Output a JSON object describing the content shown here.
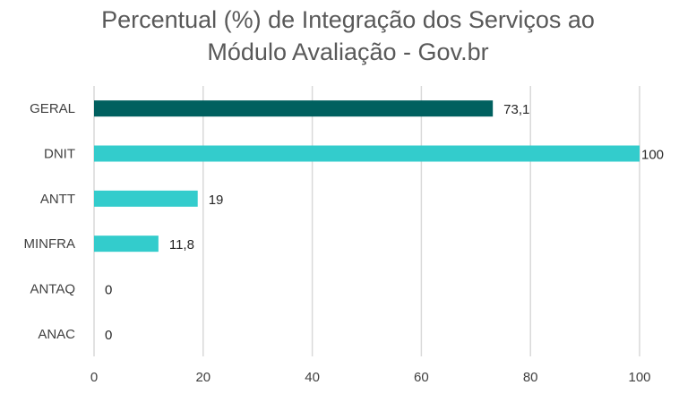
{
  "chart_data": {
    "type": "bar",
    "orientation": "horizontal",
    "title_lines": [
      "Percentual (%) de Integração dos Serviços ao",
      "Módulo Avaliação - Gov.br"
    ],
    "categories": [
      "GERAL",
      "DNIT",
      "ANTT",
      "MINFRA",
      "ANTAQ",
      "ANAC"
    ],
    "values": [
      73.1,
      100,
      19,
      11.8,
      0,
      0
    ],
    "value_labels": [
      "73,1",
      "100",
      "19",
      "11,8",
      "0",
      "0"
    ],
    "highlight": "GERAL",
    "colors": {
      "highlight": "#00605F",
      "default": "#33CCCC",
      "grid": "#D9D9D9"
    },
    "xlim": [
      0,
      100
    ],
    "xticks": [
      0,
      20,
      40,
      60,
      80,
      100
    ],
    "grid": true,
    "legend": "none"
  }
}
